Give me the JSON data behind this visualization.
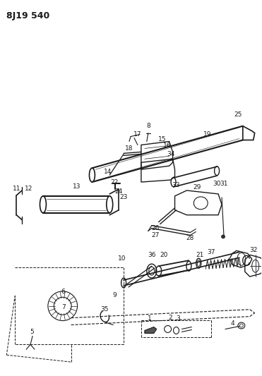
{
  "title": "8J19 540",
  "bg_color": "#ffffff",
  "line_color": "#1a1a1a",
  "title_fontsize": 9,
  "figsize": [
    3.71,
    5.33
  ],
  "dpi": 100,
  "label_fontsize": 6.5
}
